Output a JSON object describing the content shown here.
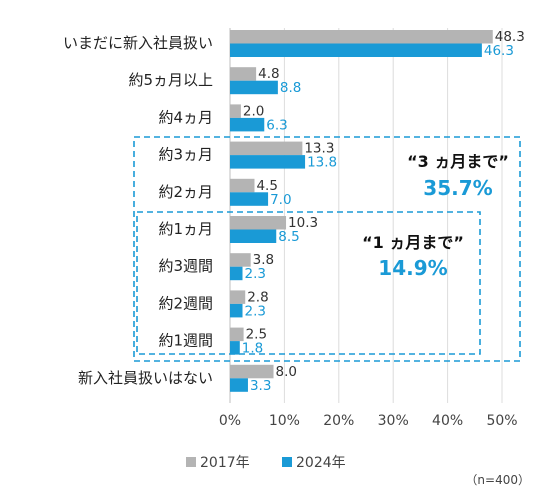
{
  "colors": {
    "series_2017": "#b4b4b4",
    "series_2024": "#1a9ad6",
    "callout_accent": "#1a9ad6",
    "box_border": "#1a9ad6"
  },
  "chart_data": {
    "type": "bar",
    "orientation": "horizontal",
    "categories": [
      "いまだに新入社員扱い",
      "約5ヵ月以上",
      "約4ヵ月",
      "約3ヵ月",
      "約2ヵ月",
      "約1ヵ月",
      "約3週間",
      "約2週間",
      "約1週間",
      "新入社員扱いはない"
    ],
    "series": [
      {
        "name": "2017年",
        "values": [
          48.3,
          4.8,
          2.0,
          13.3,
          4.5,
          10.3,
          3.8,
          2.8,
          2.5,
          8.0
        ]
      },
      {
        "name": "2024年",
        "values": [
          46.3,
          8.8,
          6.3,
          13.8,
          7.0,
          8.5,
          2.3,
          2.3,
          1.8,
          3.3
        ]
      }
    ],
    "value_labels_2017": [
      "48.3",
      "4.8",
      "2.0",
      "13.3",
      "4.5",
      "10.3",
      "3.8",
      "2.8",
      "2.5",
      "8.0"
    ],
    "value_labels_2024": [
      "46.3",
      "8.8",
      "6.3",
      "13.8",
      "7.0",
      "8.5",
      "2.3",
      "2.3",
      "1.8",
      "3.3"
    ],
    "xlim": [
      0,
      50
    ],
    "x_ticks": [
      "0%",
      "10%",
      "20%",
      "30%",
      "40%",
      "50%"
    ],
    "legend": [
      "2017年",
      "2024年"
    ],
    "legend_position": "bottom",
    "grid": true,
    "annotations": [
      {
        "label": "“3 ヵ月まで”",
        "value": "35.7%",
        "spans": [
          "約3ヵ月",
          "約1週間"
        ]
      },
      {
        "label": "“1 ヵ月まで”",
        "value": "14.9%",
        "spans": [
          "約1ヵ月",
          "約1週間"
        ]
      }
    ],
    "note": "（n=400）"
  }
}
